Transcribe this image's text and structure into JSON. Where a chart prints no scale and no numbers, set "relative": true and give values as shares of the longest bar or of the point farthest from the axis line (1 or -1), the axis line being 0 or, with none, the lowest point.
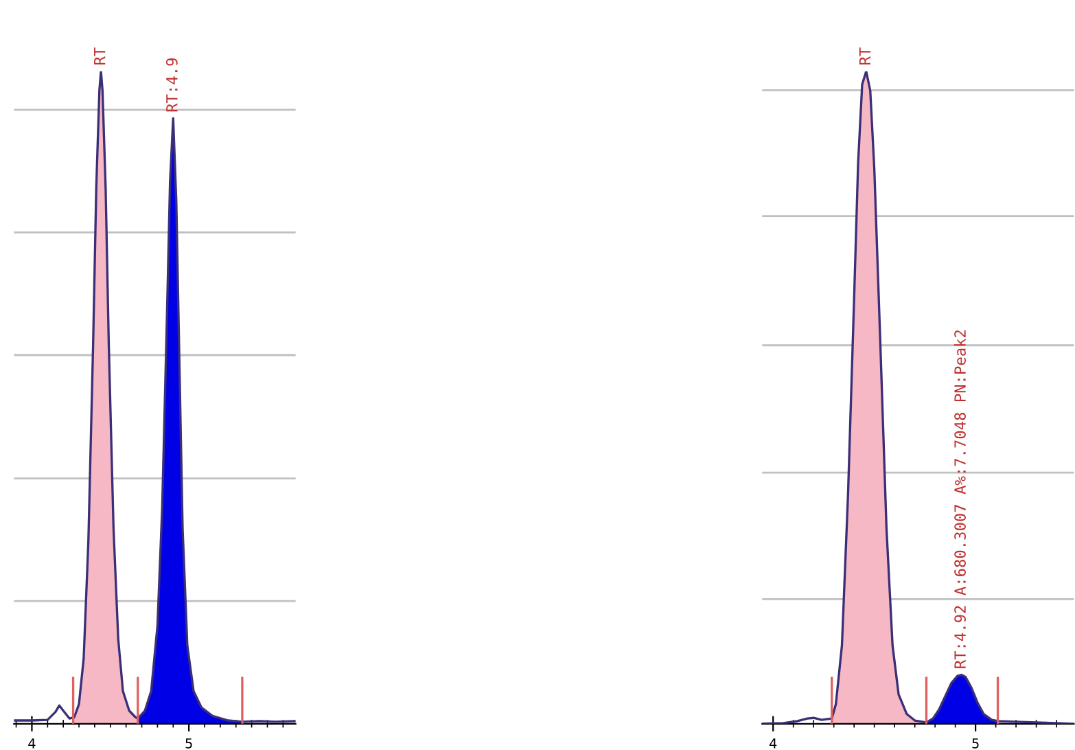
{
  "chart_data": [
    {
      "type": "area",
      "relative": true,
      "xlim": [
        3.886,
        5.68
      ],
      "xticks": [
        {
          "value": 3.9,
          "label": null
        },
        {
          "value": 4,
          "label": "4"
        },
        {
          "value": 4.1,
          "label": null
        },
        {
          "value": 4.2,
          "label": null
        },
        {
          "value": 4.3,
          "label": null
        },
        {
          "value": 4.4,
          "label": null
        },
        {
          "value": 4.5,
          "label": null
        },
        {
          "value": 4.6,
          "label": null
        },
        {
          "value": 4.7,
          "label": null
        },
        {
          "value": 4.8,
          "label": null
        },
        {
          "value": 4.9,
          "label": null
        },
        {
          "value": 5,
          "label": "5"
        },
        {
          "value": 5.1,
          "label": null
        },
        {
          "value": 5.2,
          "label": null
        },
        {
          "value": 5.3,
          "label": null
        },
        {
          "value": 5.4,
          "label": null
        },
        {
          "value": 5.5,
          "label": null
        },
        {
          "value": 5.6,
          "label": null
        }
      ],
      "series": [
        {
          "color": "#f5b8c4",
          "x": [
            4.263,
            4.27,
            4.3,
            4.33,
            4.36,
            4.39,
            4.41,
            4.43,
            4.44,
            4.45,
            4.47,
            4.49,
            4.52,
            4.55,
            4.58,
            4.62,
            4.66,
            4.675
          ],
          "values": [
            0.01,
            0.01,
            0.03,
            0.1,
            0.28,
            0.58,
            0.82,
            0.97,
            1,
            0.97,
            0.82,
            0.58,
            0.3,
            0.13,
            0.05,
            0.02,
            0.01,
            0.008
          ]
        },
        {
          "color": "#0000e6",
          "x": [
            4.675,
            4.72,
            4.76,
            4.8,
            4.83,
            4.86,
            4.88,
            4.9,
            4.92,
            4.94,
            4.96,
            4.99,
            5.03,
            5.08,
            5.15,
            5.25,
            5.34
          ],
          "values": [
            0.008,
            0.02,
            0.05,
            0.15,
            0.33,
            0.62,
            0.83,
            0.928,
            0.8,
            0.55,
            0.3,
            0.12,
            0.05,
            0.025,
            0.012,
            0.005,
            0.003
          ]
        },
        {
          "type": "line",
          "color": "#3b2f78",
          "x": [
            3.886,
            4.0,
            4.1,
            4.15,
            4.175,
            4.2,
            4.24,
            4.27,
            4.3,
            4.33,
            4.36,
            4.39,
            4.41,
            4.43,
            4.44,
            4.45,
            4.47,
            4.49,
            4.52,
            4.55,
            4.58,
            4.62,
            4.66,
            4.675,
            4.72,
            4.76,
            4.8,
            4.83,
            4.86,
            4.88,
            4.9,
            4.92,
            4.94,
            4.96,
            4.99,
            5.03,
            5.08,
            5.15,
            5.25,
            5.34,
            5.45,
            5.55,
            5.68
          ],
          "values": [
            0.005,
            0.005,
            0.006,
            0.018,
            0.028,
            0.02,
            0.008,
            0.01,
            0.03,
            0.1,
            0.28,
            0.58,
            0.82,
            0.97,
            1,
            0.97,
            0.82,
            0.58,
            0.3,
            0.13,
            0.05,
            0.02,
            0.01,
            0.008,
            0.02,
            0.05,
            0.15,
            0.33,
            0.62,
            0.83,
            0.928,
            0.8,
            0.55,
            0.3,
            0.12,
            0.05,
            0.025,
            0.012,
            0.005,
            0.003,
            0.004,
            0.003,
            0.004
          ]
        },
        {
          "type": "line",
          "color": "#e06060",
          "x": [
            4.263,
            4.263,
            null,
            4.675,
            4.675,
            null,
            5.34,
            5.34
          ],
          "values": [
            0,
            0.07,
            null,
            0,
            0.07,
            null,
            0,
            0.07
          ]
        }
      ],
      "ref_lines": [
        {
          "axis": "y",
          "value": 0.188,
          "color": "#c0c0c0"
        },
        {
          "axis": "y",
          "value": 0.376,
          "color": "#c0c0c0"
        },
        {
          "axis": "y",
          "value": 0.565,
          "color": "#c0c0c0"
        },
        {
          "axis": "y",
          "value": 0.753,
          "color": "#c0c0c0"
        },
        {
          "axis": "y",
          "value": 0.941,
          "color": "#c0c0c0"
        }
      ],
      "annotations": [
        {
          "text": "RT",
          "x": 4.44,
          "y": 1
        },
        {
          "text": "RT:4.9",
          "x": 4.9,
          "y": 0.928
        }
      ]
    },
    {
      "type": "area",
      "relative": true,
      "xlim": [
        3.946,
        5.486
      ],
      "xticks": [
        {
          "value": 4,
          "label": "4"
        },
        {
          "value": 4.1,
          "label": null
        },
        {
          "value": 4.2,
          "label": null
        },
        {
          "value": 4.3,
          "label": null
        },
        {
          "value": 4.4,
          "label": null
        },
        {
          "value": 4.5,
          "label": null
        },
        {
          "value": 4.6,
          "label": null
        },
        {
          "value": 4.7,
          "label": null
        },
        {
          "value": 4.8,
          "label": null
        },
        {
          "value": 4.9,
          "label": null
        },
        {
          "value": 5,
          "label": "5"
        },
        {
          "value": 5.1,
          "label": null
        },
        {
          "value": 5.2,
          "label": null
        },
        {
          "value": 5.3,
          "label": null
        },
        {
          "value": 5.4,
          "label": null
        }
      ],
      "series": [
        {
          "color": "#f5b8c4",
          "x": [
            4.29,
            4.31,
            4.34,
            4.37,
            4.4,
            4.42,
            4.44,
            4.46,
            4.48,
            4.5,
            4.53,
            4.56,
            4.59,
            4.62,
            4.66,
            4.7,
            4.757
          ],
          "values": [
            0.008,
            0.03,
            0.12,
            0.35,
            0.65,
            0.86,
            0.98,
            1,
            0.97,
            0.85,
            0.58,
            0.3,
            0.12,
            0.045,
            0.015,
            0.005,
            0.002
          ]
        },
        {
          "color": "#0000e6",
          "x": [
            4.757,
            4.79,
            4.82,
            4.85,
            4.88,
            4.91,
            4.93,
            4.95,
            4.98,
            5.01,
            5.04,
            5.08,
            5.11
          ],
          "values": [
            0.002,
            0.008,
            0.022,
            0.042,
            0.062,
            0.073,
            0.075,
            0.072,
            0.055,
            0.032,
            0.015,
            0.006,
            0.004
          ]
        },
        {
          "type": "line",
          "color": "#3b2f78",
          "x": [
            3.946,
            4.05,
            4.12,
            4.17,
            4.2,
            4.24,
            4.29,
            4.31,
            4.34,
            4.37,
            4.4,
            4.42,
            4.44,
            4.46,
            4.48,
            4.5,
            4.53,
            4.56,
            4.59,
            4.62,
            4.66,
            4.7,
            4.757,
            4.79,
            4.82,
            4.85,
            4.88,
            4.91,
            4.93,
            4.95,
            4.98,
            5.01,
            5.04,
            5.08,
            5.11,
            5.2,
            5.3,
            5.4,
            5.486
          ],
          "values": [
            0.0,
            0.001,
            0.004,
            0.008,
            0.009,
            0.006,
            0.008,
            0.03,
            0.12,
            0.35,
            0.65,
            0.86,
            0.98,
            1,
            0.97,
            0.85,
            0.58,
            0.3,
            0.12,
            0.045,
            0.015,
            0.005,
            0.002,
            0.008,
            0.022,
            0.042,
            0.062,
            0.073,
            0.075,
            0.072,
            0.055,
            0.032,
            0.015,
            0.006,
            0.004,
            0.003,
            0.002,
            0.001,
            0.0
          ]
        },
        {
          "type": "line",
          "color": "#e06060",
          "x": [
            4.29,
            4.29,
            null,
            4.757,
            4.757,
            null,
            5.11,
            5.11
          ],
          "values": [
            0,
            0.07,
            null,
            0,
            0.07,
            null,
            0,
            0.07
          ]
        }
      ],
      "ref_lines": [
        {
          "axis": "y",
          "value": 0.191,
          "color": "#c0c0c0"
        },
        {
          "axis": "y",
          "value": 0.385,
          "color": "#c0c0c0"
        },
        {
          "axis": "y",
          "value": 0.58,
          "color": "#c0c0c0"
        },
        {
          "axis": "y",
          "value": 0.778,
          "color": "#c0c0c0"
        },
        {
          "axis": "y",
          "value": 0.971,
          "color": "#c0c0c0"
        }
      ],
      "annotations": [
        {
          "text": "RT",
          "x": 4.46,
          "y": 1
        },
        {
          "text": "RT:4.92 A:680.3007 A%:7.7048 PN:Peak2",
          "x": 4.93,
          "y": 0.075
        }
      ]
    }
  ]
}
